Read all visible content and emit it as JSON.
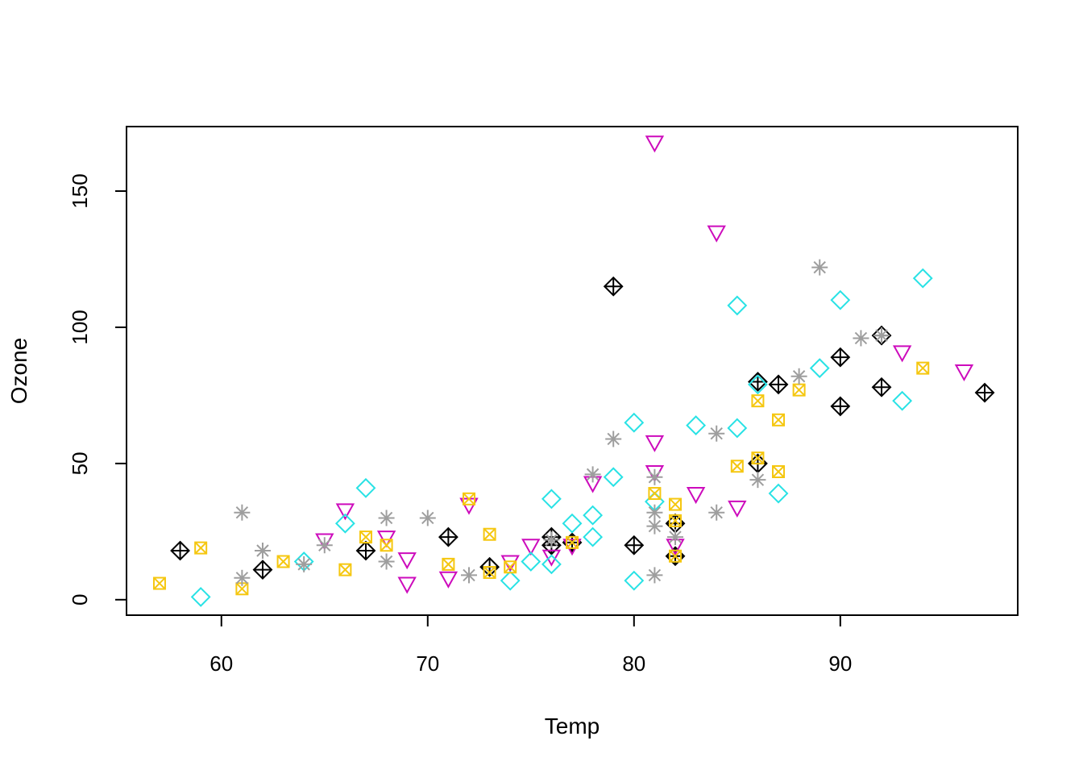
{
  "chart_data": {
    "type": "scatter",
    "title": "",
    "xlabel": "Temp",
    "ylabel": "Ozone",
    "xlim": [
      55.4,
      98.6
    ],
    "ylim": [
      -5.68,
      173.68
    ],
    "xticks": [
      60,
      70,
      80,
      90
    ],
    "yticks": [
      0,
      50,
      100,
      150
    ],
    "grid": false,
    "legend": "none",
    "series": [
      {
        "marker": "diamond-plus",
        "color": "#000000",
        "points": [
          [
            58,
            18
          ],
          [
            62,
            11
          ],
          [
            67,
            18
          ],
          [
            71,
            23
          ],
          [
            73,
            12
          ],
          [
            76,
            23
          ],
          [
            76,
            20
          ],
          [
            77,
            21
          ],
          [
            79,
            115
          ],
          [
            80,
            20
          ],
          [
            82,
            28
          ],
          [
            82,
            16
          ],
          [
            86,
            80
          ],
          [
            86,
            50
          ],
          [
            87,
            79
          ],
          [
            90,
            89
          ],
          [
            90,
            71
          ],
          [
            92,
            97
          ],
          [
            92,
            78
          ],
          [
            97,
            76
          ]
        ]
      },
      {
        "marker": "triangle-down",
        "color": "#CD0BBC",
        "points": [
          [
            65,
            22
          ],
          [
            66,
            33
          ],
          [
            68,
            23
          ],
          [
            69,
            15
          ],
          [
            69,
            6
          ],
          [
            71,
            8
          ],
          [
            72,
            35
          ],
          [
            74,
            14
          ],
          [
            75,
            20
          ],
          [
            76,
            16
          ],
          [
            77,
            20
          ],
          [
            78,
            43
          ],
          [
            81,
            168
          ],
          [
            81,
            58
          ],
          [
            81,
            47
          ],
          [
            82,
            20
          ],
          [
            83,
            39
          ],
          [
            84,
            135
          ],
          [
            85,
            34
          ],
          [
            93,
            91
          ],
          [
            96,
            84
          ]
        ]
      },
      {
        "marker": "diamond",
        "color": "#28E2E5",
        "points": [
          [
            59,
            1
          ],
          [
            64,
            14
          ],
          [
            66,
            28
          ],
          [
            67,
            41
          ],
          [
            74,
            7
          ],
          [
            75,
            14
          ],
          [
            76,
            37
          ],
          [
            76,
            13
          ],
          [
            77,
            28
          ],
          [
            78,
            31
          ],
          [
            78,
            23
          ],
          [
            79,
            45
          ],
          [
            80,
            65
          ],
          [
            80,
            7
          ],
          [
            81,
            36
          ],
          [
            83,
            64
          ],
          [
            85,
            108
          ],
          [
            85,
            63
          ],
          [
            86,
            79
          ],
          [
            87,
            39
          ],
          [
            89,
            85
          ],
          [
            90,
            110
          ],
          [
            93,
            73
          ],
          [
            94,
            118
          ]
        ]
      },
      {
        "marker": "square-x",
        "color": "#F5C710",
        "points": [
          [
            57,
            6
          ],
          [
            59,
            19
          ],
          [
            61,
            4
          ],
          [
            63,
            14
          ],
          [
            66,
            11
          ],
          [
            67,
            23
          ],
          [
            68,
            20
          ],
          [
            71,
            13
          ],
          [
            72,
            37
          ],
          [
            73,
            24
          ],
          [
            73,
            10
          ],
          [
            74,
            12
          ],
          [
            77,
            21
          ],
          [
            81,
            39
          ],
          [
            82,
            35
          ],
          [
            82,
            29
          ],
          [
            82,
            16
          ],
          [
            85,
            49
          ],
          [
            86,
            73
          ],
          [
            86,
            52
          ],
          [
            87,
            66
          ],
          [
            87,
            47
          ],
          [
            88,
            77
          ],
          [
            94,
            85
          ]
        ]
      },
      {
        "marker": "asterisk",
        "color": "#9E9E9E",
        "points": [
          [
            61,
            32
          ],
          [
            61,
            8
          ],
          [
            62,
            18
          ],
          [
            64,
            13
          ],
          [
            65,
            20
          ],
          [
            68,
            30
          ],
          [
            68,
            14
          ],
          [
            70,
            30
          ],
          [
            72,
            9
          ],
          [
            76,
            22
          ],
          [
            78,
            46
          ],
          [
            79,
            59
          ],
          [
            81,
            45
          ],
          [
            81,
            32
          ],
          [
            81,
            27
          ],
          [
            81,
            9
          ],
          [
            82,
            23
          ],
          [
            84,
            61
          ],
          [
            84,
            32
          ],
          [
            86,
            44
          ],
          [
            88,
            82
          ],
          [
            89,
            122
          ],
          [
            91,
            96
          ],
          [
            92,
            97
          ]
        ]
      }
    ]
  }
}
